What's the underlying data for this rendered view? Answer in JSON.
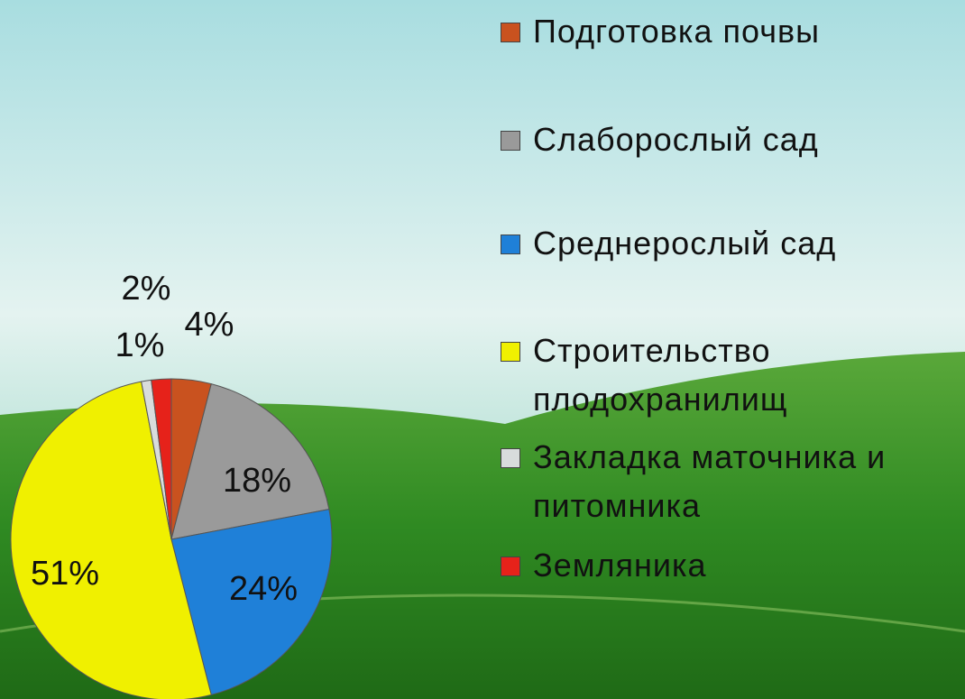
{
  "chart_data": {
    "type": "pie",
    "categories": [
      "Подготовка почвы",
      "Слаборослый сад",
      "Среднерослый сад",
      "Строительство плодохранилищ",
      "Закладка маточника и питомника",
      "Земляника"
    ],
    "values": [
      4,
      18,
      24,
      51,
      1,
      2
    ],
    "value_labels": [
      "4%",
      "18%",
      "24%",
      "51%",
      "1%",
      "2%"
    ],
    "colors": [
      "#c9521f",
      "#9a9a9a",
      "#1f80d8",
      "#f0f000",
      "#d8dcdc",
      "#e6221a"
    ]
  }
}
